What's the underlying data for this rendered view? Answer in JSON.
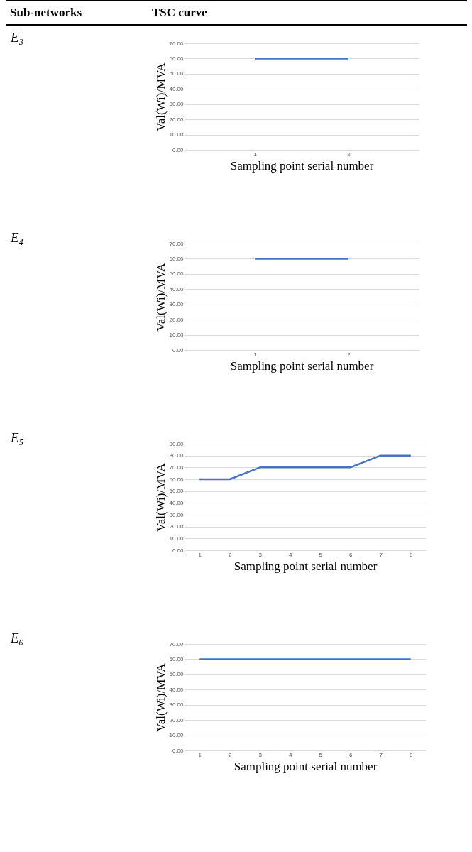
{
  "chart_data": [
    {
      "type": "line",
      "annotations": [
        "Sub-networks",
        "TSC curve",
        "E₃"
      ],
      "categories": [
        "1",
        "2"
      ],
      "series": [
        {
          "color": "#4472c4",
          "values": [
            60,
            60
          ]
        }
      ],
      "xlabel": "Sampling point serial number",
      "ylabel": "Val(Wi)/MVA",
      "ylim": [
        0,
        70
      ],
      "yticks": [
        {
          "value": 0,
          "label": "0.00"
        },
        {
          "value": 10,
          "label": "10.00"
        },
        {
          "value": 20,
          "label": "20.00"
        },
        {
          "value": 30,
          "label": "30.00"
        },
        {
          "value": 40,
          "label": "40.00"
        },
        {
          "value": 50,
          "label": "50.00"
        },
        {
          "value": 60,
          "label": "60.00"
        },
        {
          "value": 70,
          "label": "70.00"
        }
      ],
      "grid": "y",
      "legend": false,
      "marker": "none"
    },
    {
      "type": "line",
      "annotations": [
        "E₄"
      ],
      "categories": [
        "1",
        "2"
      ],
      "series": [
        {
          "color": "#4472c4",
          "values": [
            60,
            60
          ]
        }
      ],
      "xlabel": "Sampling point serial number",
      "ylabel": "Val(Wi)/MVA",
      "ylim": [
        0,
        70
      ],
      "yticks": [
        {
          "value": 0,
          "label": "0.00"
        },
        {
          "value": 10,
          "label": "10.00"
        },
        {
          "value": 20,
          "label": "20.00"
        },
        {
          "value": 30,
          "label": "30.00"
        },
        {
          "value": 40,
          "label": "40.00"
        },
        {
          "value": 50,
          "label": "50.00"
        },
        {
          "value": 60,
          "label": "60.00"
        },
        {
          "value": 70,
          "label": "70.00"
        }
      ],
      "grid": "y",
      "legend": false,
      "marker": "none"
    },
    {
      "type": "line",
      "annotations": [
        "E₅"
      ],
      "categories": [
        "1",
        "2",
        "3",
        "4",
        "5",
        "6",
        "7",
        "8"
      ],
      "series": [
        {
          "color": "#4472c4",
          "values": [
            60,
            60,
            70,
            70,
            70,
            70,
            80,
            80
          ]
        }
      ],
      "xlabel": "Sampling point serial number",
      "ylabel": "Val(Wi)/MVA",
      "ylim": [
        0,
        90
      ],
      "yticks": [
        {
          "value": 0,
          "label": "0.00"
        },
        {
          "value": 10,
          "label": "10.00"
        },
        {
          "value": 20,
          "label": "20.00"
        },
        {
          "value": 30,
          "label": "30.00"
        },
        {
          "value": 40,
          "label": "40.00"
        },
        {
          "value": 50,
          "label": "50.00"
        },
        {
          "value": 60,
          "label": "60.00"
        },
        {
          "value": 70,
          "label": "70.00"
        },
        {
          "value": 80,
          "label": "80.00"
        },
        {
          "value": 90,
          "label": "90.00"
        }
      ],
      "grid": "y",
      "legend": false,
      "marker": "none"
    },
    {
      "type": "line",
      "annotations": [
        "E₆"
      ],
      "categories": [
        "1",
        "2",
        "3",
        "4",
        "5",
        "6",
        "7",
        "8"
      ],
      "series": [
        {
          "color": "#4472c4",
          "values": [
            60,
            60,
            60,
            60,
            60,
            60,
            60,
            60
          ]
        }
      ],
      "xlabel": "Sampling point serial number",
      "ylabel": "Val(Wi)/MVA",
      "ylim": [
        0,
        70
      ],
      "yticks": [
        {
          "value": 0,
          "label": "0.00"
        },
        {
          "value": 10,
          "label": "10.00"
        },
        {
          "value": 20,
          "label": "20.00"
        },
        {
          "value": 30,
          "label": "30.00"
        },
        {
          "value": 40,
          "label": "40.00"
        },
        {
          "value": 50,
          "label": "50.00"
        },
        {
          "value": 60,
          "label": "60.00"
        },
        {
          "value": 70,
          "label": "70.00"
        }
      ],
      "grid": "y",
      "legend": false,
      "marker": "none"
    }
  ]
}
